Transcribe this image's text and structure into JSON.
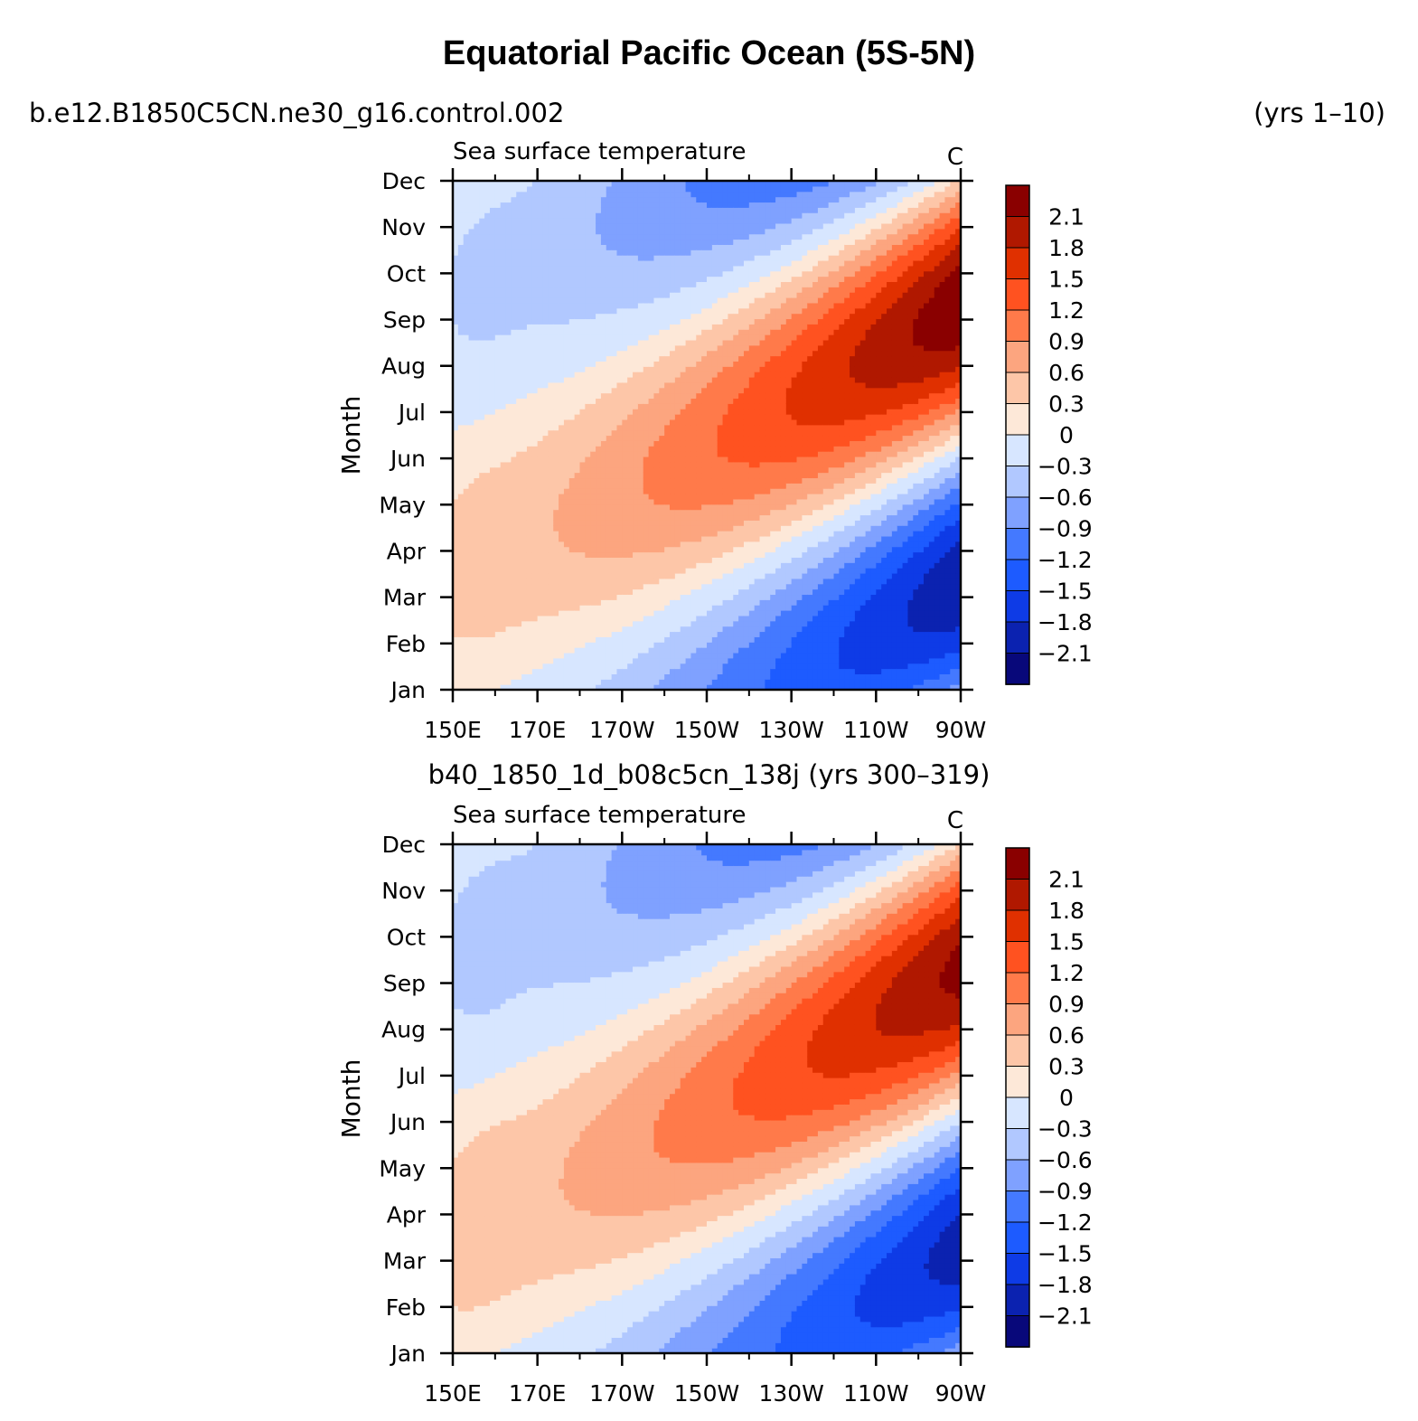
{
  "header": {
    "title": "Equatorial Pacific Ocean (5S-5N)",
    "top_case": "b.e12.B1850C5CN.ne30_g16.control.002",
    "top_years": "(yrs 1–10)",
    "bottom_case": "b40_1850_1d_b08c5cn_138j (yrs 300–319)"
  },
  "chart_data": [
    {
      "type": "heatmap",
      "title": "Sea surface temperature",
      "units": "C",
      "ylabel": "Month",
      "xlabel": "",
      "x_tick_labels": [
        "150E",
        "170E",
        "170W",
        "150W",
        "130W",
        "110W",
        "90W"
      ],
      "x_ticks_deg_east": [
        150,
        170,
        190,
        210,
        230,
        250,
        270
      ],
      "xlim_deg_east": [
        150,
        270
      ],
      "y_tick_labels": [
        "Jan",
        "Feb",
        "Mar",
        "Apr",
        "May",
        "Jun",
        "Jul",
        "Aug",
        "Sep",
        "Oct",
        "Nov",
        "Dec"
      ],
      "contour_levels": [
        -2.1,
        -1.8,
        -1.5,
        -1.2,
        -0.9,
        -0.6,
        -0.3,
        0,
        0.3,
        0.6,
        0.9,
        1.2,
        1.5,
        1.8,
        2.1
      ],
      "colorbar_labels": [
        "2.1",
        "1.8",
        "1.5",
        "1.2",
        "0.9",
        "0.6",
        "0.3",
        "0",
        "−0.3",
        "−0.6",
        "−0.9",
        "−1.2",
        "−1.5",
        "−1.8",
        "−2.1"
      ],
      "colors": [
        "#08087a",
        "#0b22b0",
        "#0e3be6",
        "#1d5bff",
        "#4479ff",
        "#7fa1ff",
        "#b1c8ff",
        "#d7e6ff",
        "#fde8d8",
        "#fdc6a8",
        "#fca57f",
        "#ff7a4a",
        "#ff5220",
        "#e03000",
        "#b01800",
        "#8a0000"
      ],
      "field_model": {
        "amp_cold": 2.05,
        "amp_warm": 2.35,
        "west_offset": 0.1
      }
    },
    {
      "type": "heatmap",
      "title": "Sea surface temperature",
      "units": "C",
      "ylabel": "Month",
      "xlabel": "",
      "x_tick_labels": [
        "150E",
        "170E",
        "170W",
        "150W",
        "130W",
        "110W",
        "90W"
      ],
      "x_ticks_deg_east": [
        150,
        170,
        190,
        210,
        230,
        250,
        270
      ],
      "xlim_deg_east": [
        150,
        270
      ],
      "y_tick_labels": [
        "Jan",
        "Feb",
        "Mar",
        "Apr",
        "May",
        "Jun",
        "Jul",
        "Aug",
        "Sep",
        "Oct",
        "Nov",
        "Dec"
      ],
      "contour_levels": [
        -2.1,
        -1.8,
        -1.5,
        -1.2,
        -0.9,
        -0.6,
        -0.3,
        0,
        0.3,
        0.6,
        0.9,
        1.2,
        1.5,
        1.8,
        2.1
      ],
      "colorbar_labels": [
        "2.1",
        "1.8",
        "1.5",
        "1.2",
        "0.9",
        "0.6",
        "0.3",
        "0",
        "−0.3",
        "−0.6",
        "−0.9",
        "−1.2",
        "−1.5",
        "−1.8",
        "−2.1"
      ],
      "colors": [
        "#08087a",
        "#0b22b0",
        "#0e3be6",
        "#1d5bff",
        "#4479ff",
        "#7fa1ff",
        "#b1c8ff",
        "#d7e6ff",
        "#fde8d8",
        "#fdc6a8",
        "#fca57f",
        "#ff7a4a",
        "#ff5220",
        "#e03000",
        "#b01800",
        "#8a0000"
      ],
      "field_model": {
        "amp_cold": 1.95,
        "amp_warm": 2.2,
        "west_offset": 0.15
      }
    }
  ]
}
